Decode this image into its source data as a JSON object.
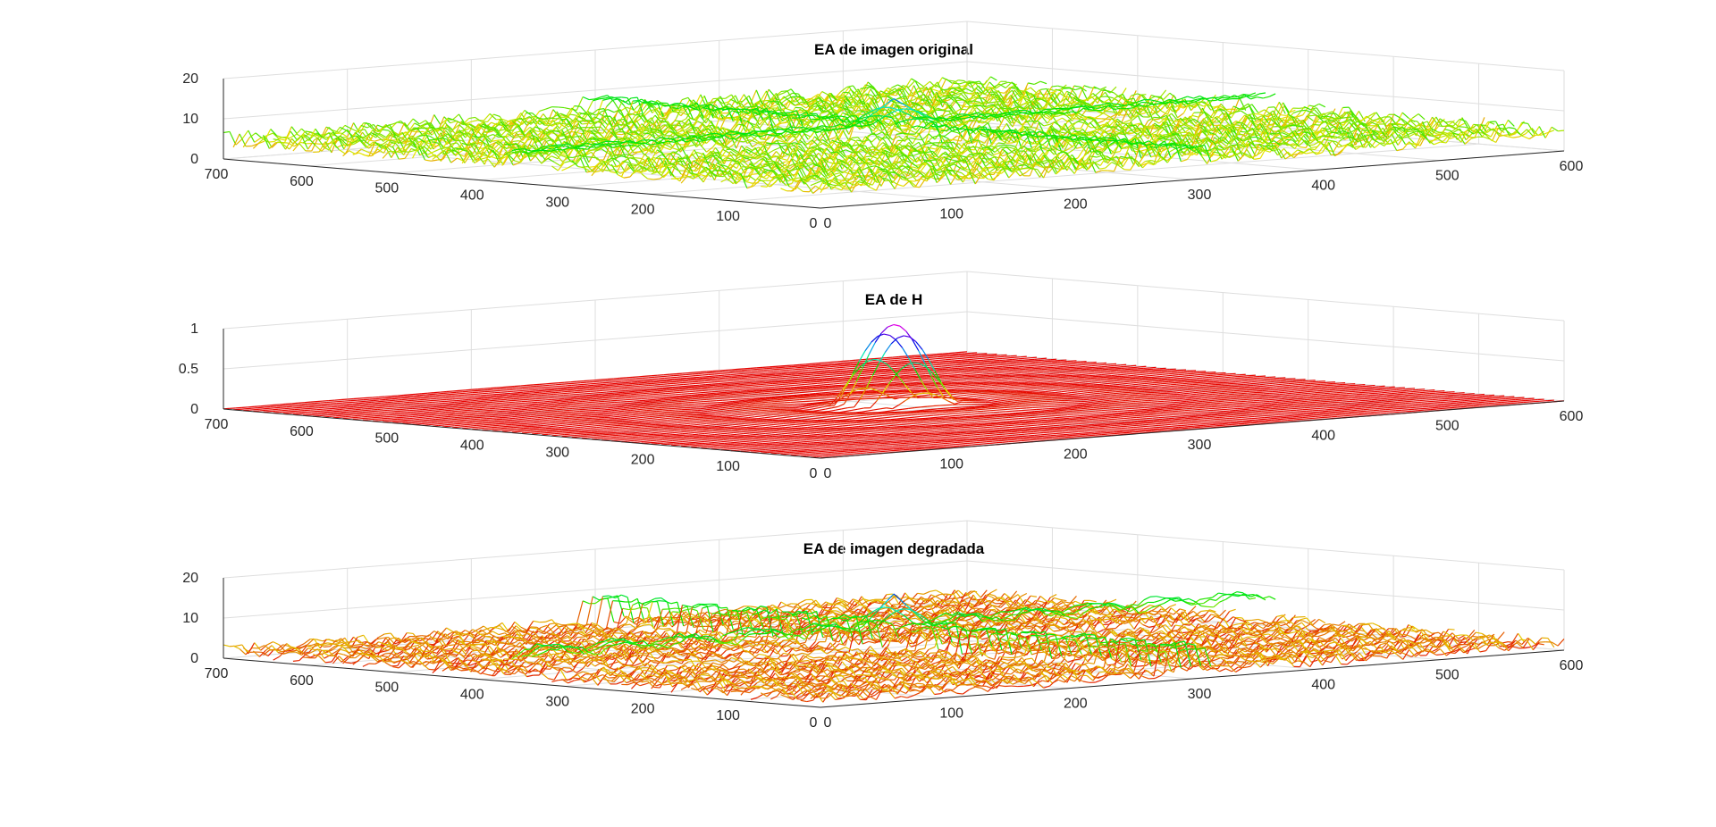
{
  "figure": {
    "background": "#ffffff",
    "axis_color": "#262626",
    "grid_color": "#dedede"
  },
  "chart_data": [
    {
      "type": "surface",
      "title": "EA de imagen original",
      "xlabel": "",
      "ylabel": "",
      "zlabel": "",
      "xlim": [
        0,
        600
      ],
      "ylim": [
        0,
        700
      ],
      "zlim": [
        0,
        20
      ],
      "x_ticks": [
        "0",
        "100",
        "200",
        "300",
        "400",
        "500",
        "600"
      ],
      "y_ticks": [
        "0",
        "100",
        "200",
        "300",
        "400",
        "500",
        "600",
        "700"
      ],
      "z_ticks": [
        "0",
        "10",
        "20"
      ],
      "grid": true,
      "colormap": "hsv",
      "surface": {
        "shape": "flat noisy spectrum with central cross and peak",
        "base_level": 5,
        "noise_amplitude": 2,
        "cross_level": 8,
        "peak_center": [
          300,
          350
        ],
        "peak_value": 14
      }
    },
    {
      "type": "surface",
      "title": "EA de H",
      "xlabel": "",
      "ylabel": "",
      "zlabel": "",
      "xlim": [
        0,
        600
      ],
      "ylim": [
        0,
        700
      ],
      "zlim": [
        0,
        1
      ],
      "x_ticks": [
        "0",
        "100",
        "200",
        "300",
        "400",
        "500",
        "600"
      ],
      "y_ticks": [
        "0",
        "100",
        "200",
        "300",
        "400",
        "500",
        "600",
        "700"
      ],
      "z_ticks": [
        "0",
        "0.5",
        "1"
      ],
      "grid": true,
      "colormap": "hsv",
      "surface": {
        "shape": "sinc-like central lobe",
        "peak_center": [
          300,
          350
        ],
        "peak_value": 1,
        "main_lobe_radius": 45,
        "sidelobe_amplitude": 0.04
      }
    },
    {
      "type": "surface",
      "title": "EA de imagen degradada",
      "xlabel": "",
      "ylabel": "",
      "zlabel": "",
      "xlim": [
        0,
        600
      ],
      "ylim": [
        0,
        700
      ],
      "zlim": [
        0,
        20
      ],
      "x_ticks": [
        "0",
        "100",
        "200",
        "300",
        "400",
        "500",
        "600"
      ],
      "y_ticks": [
        "0",
        "100",
        "200",
        "300",
        "400",
        "500",
        "600",
        "700"
      ],
      "z_ticks": [
        "0",
        "10",
        "20"
      ],
      "grid": true,
      "colormap": "hsv",
      "surface": {
        "shape": "noisy spectrum with periodic lobes along central cross",
        "base_level": 2,
        "noise_amplitude": 1.5,
        "cross_level": 6,
        "lobe_period": 55,
        "peak_center": [
          300,
          350
        ],
        "peak_value": 15
      }
    }
  ]
}
